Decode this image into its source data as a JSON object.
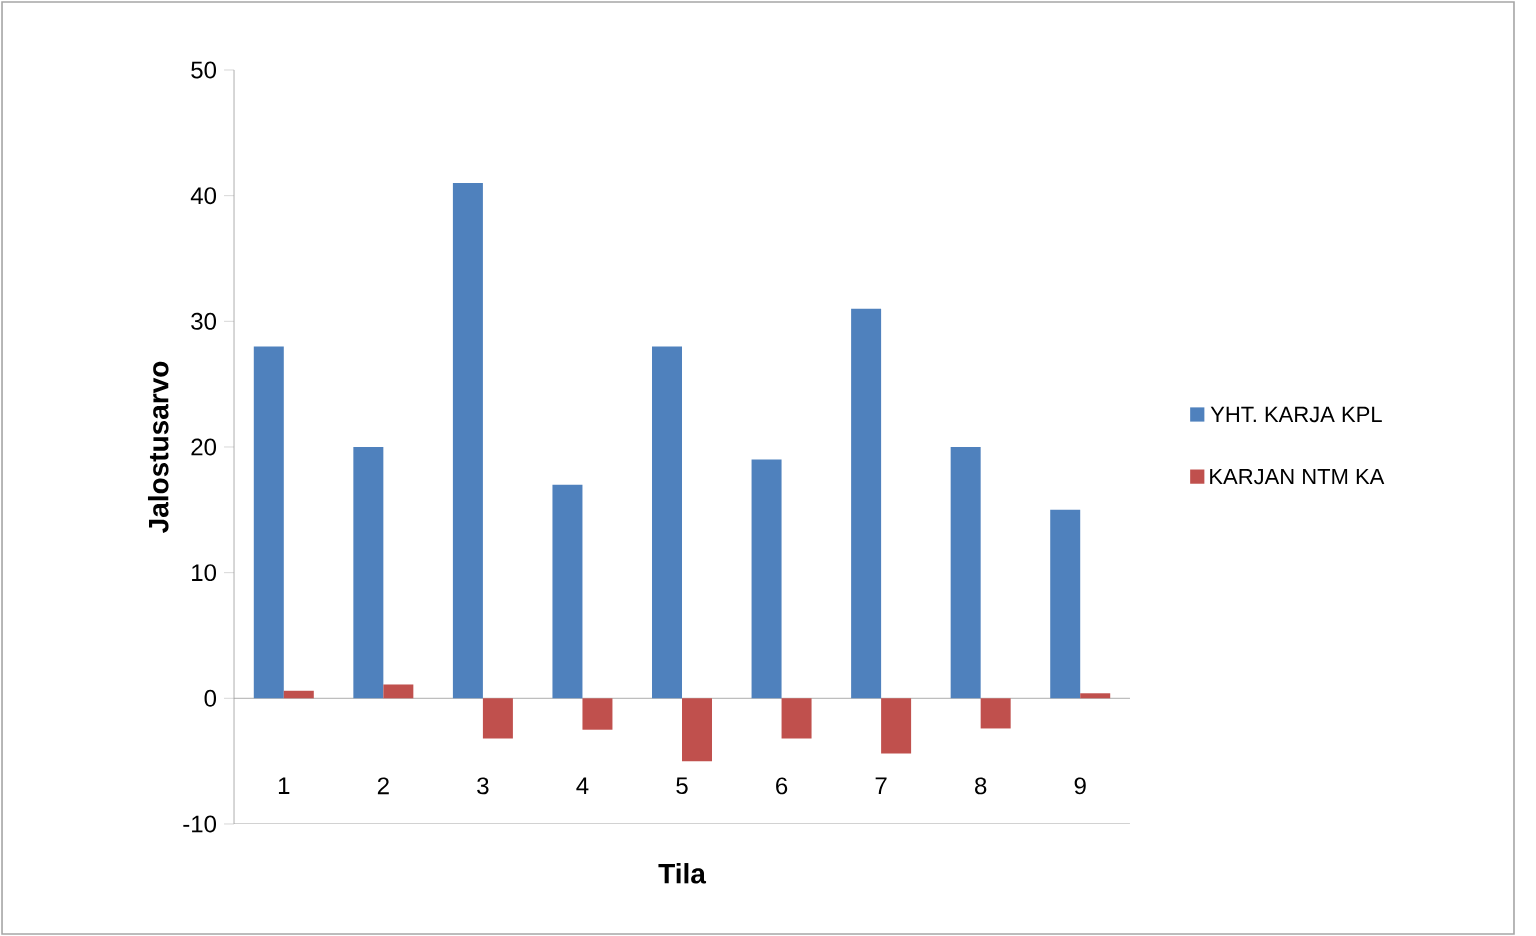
{
  "chart_data": {
    "type": "bar",
    "xlabel": "Tila",
    "ylabel": "Jalostusarvo",
    "categories": [
      "1",
      "2",
      "3",
      "4",
      "5",
      "6",
      "7",
      "8",
      "9"
    ],
    "series": [
      {
        "name": "YHT. KARJA KPL",
        "color": "#4f81bd",
        "values": [
          28,
          20,
          41,
          17,
          28,
          19,
          31,
          20,
          15
        ]
      },
      {
        "name": "KARJAN NTM KA",
        "color": "#c0504d",
        "values": [
          0.6,
          1.1,
          -3.2,
          -2.5,
          -5.0,
          -3.2,
          -4.4,
          -2.4,
          0.4
        ]
      }
    ],
    "ylim": [
      -10,
      50
    ],
    "yticks": [
      -10,
      0,
      10,
      20,
      30,
      40,
      50
    ],
    "legend": "right"
  }
}
